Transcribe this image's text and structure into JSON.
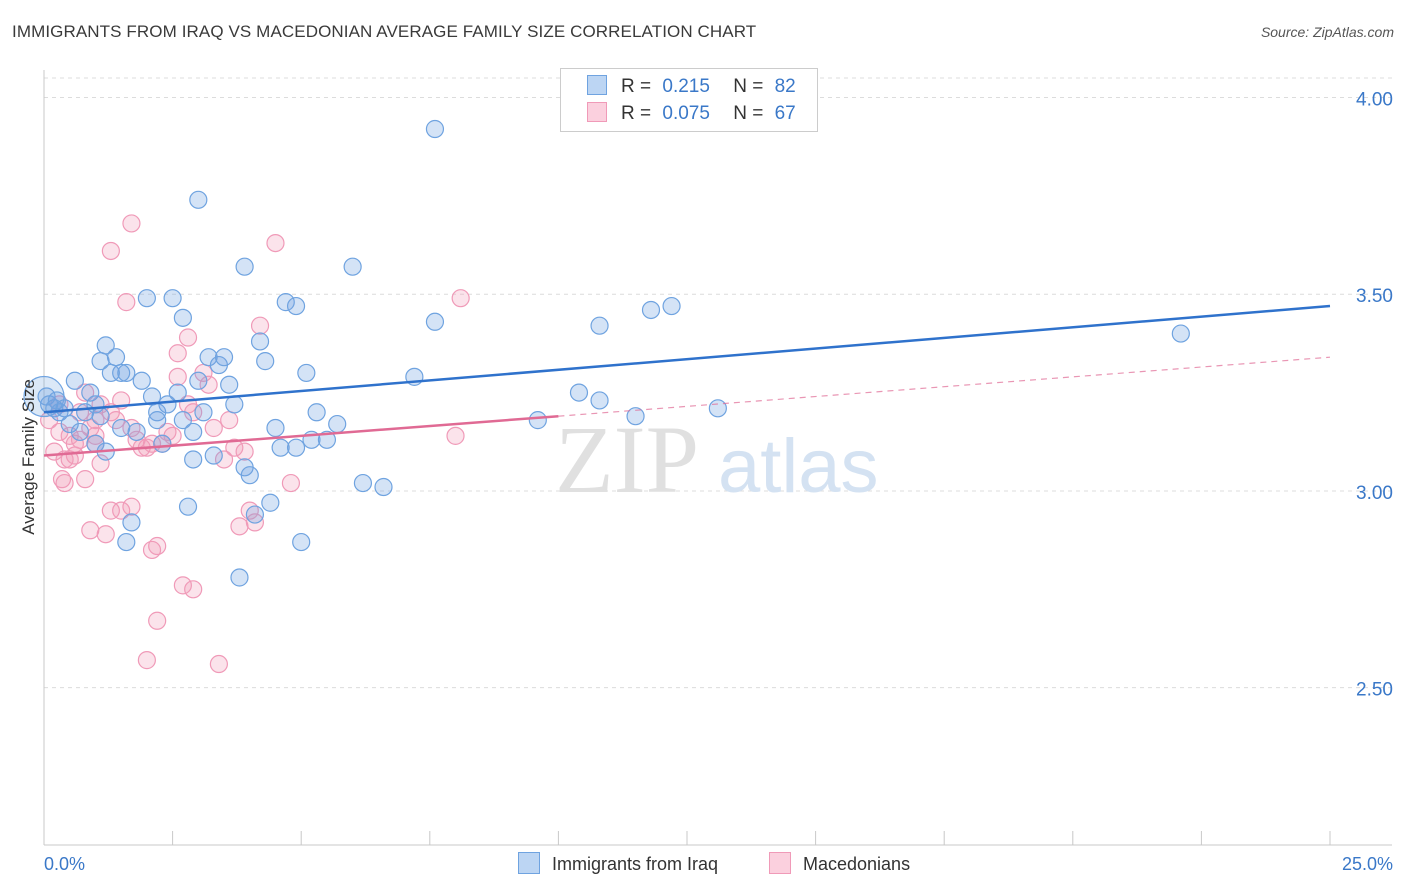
{
  "title": "IMMIGRANTS FROM IRAQ VS MACEDONIAN AVERAGE FAMILY SIZE CORRELATION CHART",
  "source": "Source: ZipAtlas.com",
  "watermark": {
    "zip": "ZIP",
    "atlas": "atlas"
  },
  "legend": {
    "rows": [
      {
        "r_label": "R =",
        "r_value": "0.215",
        "n_label": "N =",
        "n_value": "82"
      },
      {
        "r_label": "R =",
        "r_value": "0.075",
        "n_label": "N =",
        "n_value": "67"
      }
    ]
  },
  "bottom_legend": {
    "series1": "Immigrants from Iraq",
    "series2": "Macedonians"
  },
  "chart_data": {
    "type": "scatter",
    "title": "IMMIGRANTS FROM IRAQ VS MACEDONIAN AVERAGE FAMILY SIZE CORRELATION CHART",
    "xlabel": "",
    "ylabel": "Average Family Size",
    "xlim": [
      0,
      25
    ],
    "ylim": [
      2.1,
      4.07
    ],
    "x_tick_labels": [
      "0.0%",
      "25.0%"
    ],
    "y_ticks": [
      2.5,
      3.0,
      3.5,
      4.0
    ],
    "y_tick_labels": [
      "2.50",
      "3.00",
      "3.50",
      "4.00"
    ],
    "grid": true,
    "colors": {
      "iraq": "#6fa3e0",
      "iraq_line": "#2f72cc",
      "mac": "#f09ab8",
      "mac_line": "#e06a94",
      "axis_label": "#3a78c8"
    },
    "series": [
      {
        "name": "Immigrants from Iraq",
        "trend": {
          "x0": 0,
          "y0": 3.2,
          "x1": 25,
          "y1": 3.47
        },
        "points": [
          [
            0.05,
            3.24
          ],
          [
            0.1,
            3.22
          ],
          [
            0.2,
            3.21
          ],
          [
            0.25,
            3.23
          ],
          [
            0.3,
            3.2
          ],
          [
            0.5,
            3.17
          ],
          [
            0.6,
            3.28
          ],
          [
            0.7,
            3.15
          ],
          [
            0.8,
            3.2
          ],
          [
            0.9,
            3.25
          ],
          [
            1.0,
            3.12
          ],
          [
            1.1,
            3.19
          ],
          [
            1.2,
            3.1
          ],
          [
            1.1,
            3.33
          ],
          [
            1.2,
            3.37
          ],
          [
            1.3,
            3.3
          ],
          [
            1.4,
            3.34
          ],
          [
            1.5,
            3.3
          ],
          [
            1.5,
            3.16
          ],
          [
            1.6,
            2.87
          ],
          [
            1.7,
            2.92
          ],
          [
            1.8,
            3.15
          ],
          [
            1.9,
            3.28
          ],
          [
            2.0,
            3.49
          ],
          [
            2.1,
            3.24
          ],
          [
            2.2,
            3.2
          ],
          [
            2.2,
            3.18
          ],
          [
            2.3,
            3.12
          ],
          [
            2.4,
            3.22
          ],
          [
            2.5,
            3.49
          ],
          [
            2.6,
            3.25
          ],
          [
            2.7,
            3.44
          ],
          [
            2.8,
            2.96
          ],
          [
            2.9,
            3.08
          ],
          [
            2.9,
            3.15
          ],
          [
            3.0,
            3.28
          ],
          [
            3.1,
            3.2
          ],
          [
            3.0,
            3.74
          ],
          [
            3.2,
            3.34
          ],
          [
            3.3,
            3.09
          ],
          [
            3.4,
            3.32
          ],
          [
            3.5,
            3.34
          ],
          [
            3.6,
            3.27
          ],
          [
            3.8,
            2.78
          ],
          [
            3.9,
            3.06
          ],
          [
            3.9,
            3.57
          ],
          [
            4.0,
            3.04
          ],
          [
            4.1,
            2.94
          ],
          [
            4.2,
            3.38
          ],
          [
            4.3,
            3.33
          ],
          [
            4.4,
            2.97
          ],
          [
            4.5,
            3.16
          ],
          [
            4.6,
            3.11
          ],
          [
            4.7,
            3.48
          ],
          [
            4.9,
            3.47
          ],
          [
            5.0,
            2.87
          ],
          [
            5.1,
            3.3
          ],
          [
            5.2,
            3.13
          ],
          [
            5.3,
            3.2
          ],
          [
            5.5,
            3.13
          ],
          [
            5.7,
            3.17
          ],
          [
            6.0,
            3.57
          ],
          [
            6.2,
            3.02
          ],
          [
            6.6,
            3.01
          ],
          [
            7.2,
            3.29
          ],
          [
            7.6,
            3.43
          ],
          [
            7.6,
            3.92
          ],
          [
            9.6,
            3.18
          ],
          [
            10.4,
            3.25
          ],
          [
            10.8,
            3.42
          ],
          [
            10.8,
            3.23
          ],
          [
            11.5,
            3.19
          ],
          [
            11.8,
            3.46
          ],
          [
            12.2,
            3.47
          ],
          [
            13.1,
            3.21
          ],
          [
            22.1,
            3.4
          ],
          [
            0.4,
            3.21
          ],
          [
            1.6,
            3.3
          ],
          [
            2.7,
            3.18
          ],
          [
            3.7,
            3.22
          ],
          [
            4.9,
            3.11
          ],
          [
            1.0,
            3.22
          ]
        ],
        "big_point": [
          0.0,
          3.24
        ]
      },
      {
        "name": "Macedonians",
        "trend": {
          "x0": 0,
          "y0": 3.09,
          "x1": 10,
          "y1": 3.19
        },
        "trend_dashed": {
          "x0": 10,
          "y0": 3.19,
          "x1": 25,
          "y1": 3.34
        },
        "points": [
          [
            0.1,
            3.18
          ],
          [
            0.2,
            3.1
          ],
          [
            0.3,
            3.15
          ],
          [
            0.35,
            3.03
          ],
          [
            0.4,
            3.02
          ],
          [
            0.5,
            3.14
          ],
          [
            0.5,
            3.08
          ],
          [
            0.6,
            3.12
          ],
          [
            0.6,
            3.09
          ],
          [
            0.7,
            3.2
          ],
          [
            0.8,
            3.03
          ],
          [
            0.8,
            3.25
          ],
          [
            0.9,
            3.16
          ],
          [
            0.9,
            2.9
          ],
          [
            1.0,
            3.14
          ],
          [
            1.0,
            3.12
          ],
          [
            1.1,
            3.07
          ],
          [
            1.1,
            3.22
          ],
          [
            1.2,
            2.89
          ],
          [
            1.3,
            3.61
          ],
          [
            1.3,
            3.2
          ],
          [
            1.3,
            2.95
          ],
          [
            1.4,
            3.18
          ],
          [
            1.5,
            2.95
          ],
          [
            1.6,
            3.48
          ],
          [
            1.7,
            3.16
          ],
          [
            1.7,
            2.96
          ],
          [
            1.7,
            3.68
          ],
          [
            1.8,
            3.13
          ],
          [
            1.9,
            3.11
          ],
          [
            2.0,
            3.11
          ],
          [
            2.0,
            2.57
          ],
          [
            2.1,
            2.85
          ],
          [
            2.1,
            3.12
          ],
          [
            2.2,
            2.86
          ],
          [
            2.2,
            2.67
          ],
          [
            2.4,
            3.15
          ],
          [
            2.5,
            3.14
          ],
          [
            2.6,
            3.29
          ],
          [
            2.6,
            3.35
          ],
          [
            2.7,
            2.76
          ],
          [
            2.8,
            3.22
          ],
          [
            2.8,
            3.39
          ],
          [
            2.9,
            2.75
          ],
          [
            3.1,
            3.3
          ],
          [
            3.2,
            3.27
          ],
          [
            3.4,
            2.56
          ],
          [
            3.5,
            3.08
          ],
          [
            3.6,
            3.18
          ],
          [
            3.7,
            3.11
          ],
          [
            3.8,
            2.91
          ],
          [
            4.0,
            2.95
          ],
          [
            4.1,
            2.92
          ],
          [
            4.2,
            3.42
          ],
          [
            4.5,
            3.63
          ],
          [
            4.8,
            3.02
          ],
          [
            8.0,
            3.14
          ],
          [
            8.1,
            3.49
          ],
          [
            0.3,
            3.22
          ],
          [
            0.4,
            3.08
          ],
          [
            0.7,
            3.13
          ],
          [
            1.0,
            3.18
          ],
          [
            1.5,
            3.23
          ],
          [
            2.3,
            3.12
          ],
          [
            2.9,
            3.2
          ],
          [
            3.3,
            3.16
          ],
          [
            3.9,
            3.1
          ]
        ]
      }
    ]
  }
}
